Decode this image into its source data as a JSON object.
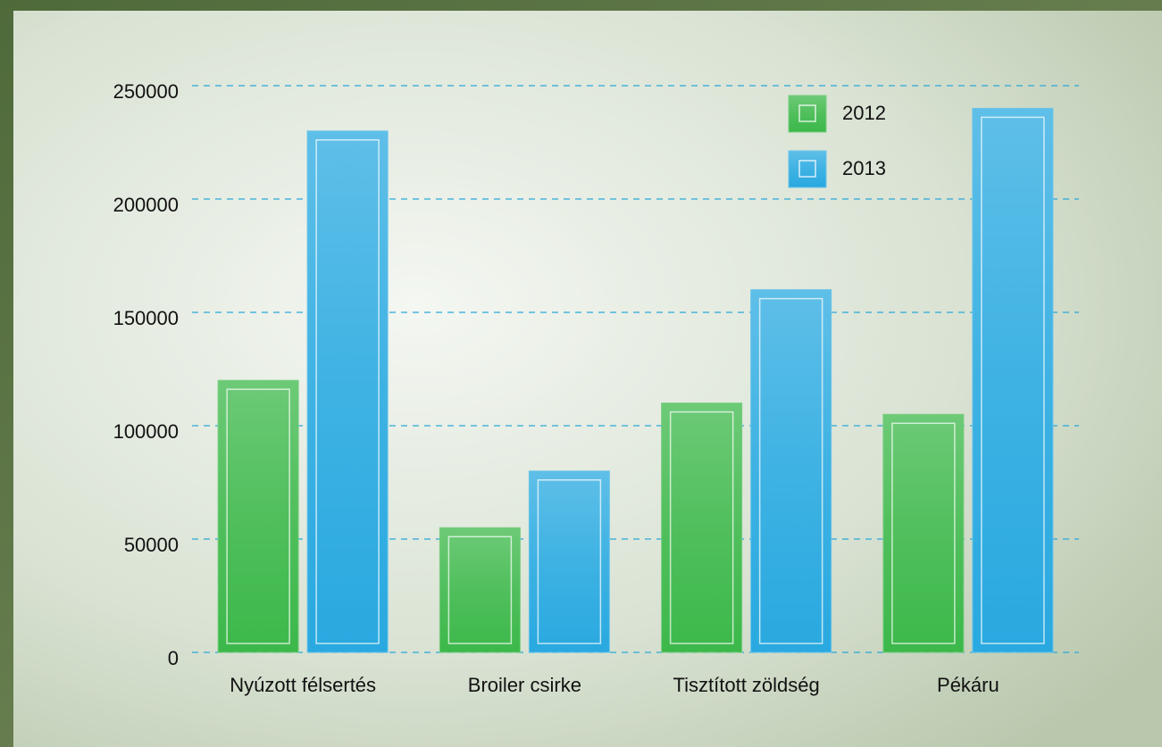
{
  "chart_data": {
    "type": "bar",
    "categories": [
      "Nyúzott félsertés",
      "Broiler csirke",
      "Tisztított zöldség",
      "Pékáru"
    ],
    "series": [
      {
        "name": "2012",
        "color": "#3cb84a",
        "values": [
          120000,
          55000,
          110000,
          105000
        ]
      },
      {
        "name": "2013",
        "color": "#29a9e0",
        "values": [
          230000,
          80000,
          160000,
          240000
        ]
      }
    ],
    "ylim": [
      0,
      250000
    ],
    "yticks": [
      0,
      50000,
      100000,
      150000,
      200000,
      250000
    ],
    "grid": true
  }
}
